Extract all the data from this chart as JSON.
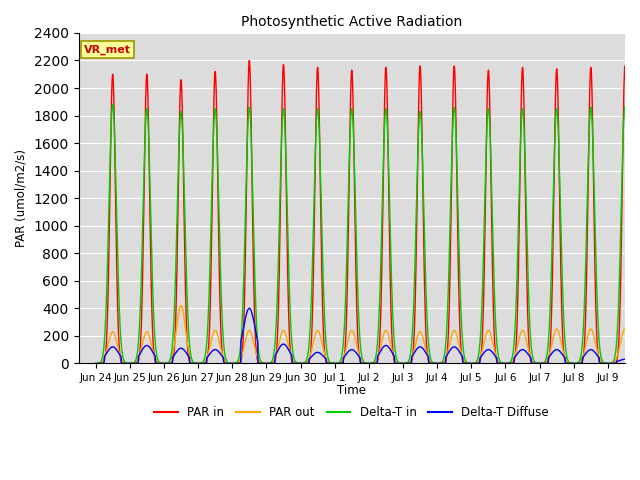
{
  "title": "Photosynthetic Active Radiation",
  "ylabel": "PAR (umol/m2/s)",
  "xlabel": "Time",
  "ylim": [
    0,
    2400
  ],
  "yticks": [
    0,
    200,
    400,
    600,
    800,
    1000,
    1200,
    1400,
    1600,
    1800,
    2000,
    2200,
    2400
  ],
  "annotation_text": "VR_met",
  "annotation_color": "#cc0000",
  "annotation_box_color": "#ffff99",
  "annotation_box_edge": "#999900",
  "background_color": "#dcdcdc",
  "colors": {
    "PAR in": "#ff0000",
    "PAR out": "#ffa500",
    "Delta-T in": "#00cc00",
    "Delta-T Diffuse": "#0000ff"
  },
  "tick_labels": [
    "Jun 24",
    "Jun 25",
    "Jun 26",
    "Jun 27",
    "Jun 28",
    "Jun 29",
    "Jun 30",
    "Jul 1",
    "Jul 2",
    "Jul 3",
    "Jul 4",
    "Jul 5",
    "Jul 6",
    "Jul 7",
    "Jul 8",
    "Jul 9"
  ],
  "par_in_peaks": [
    2100,
    2100,
    2060,
    2120,
    2200,
    2170,
    2150,
    2130,
    2150,
    2160,
    2160,
    2130,
    2150,
    2140,
    2150,
    2160
  ],
  "par_out_peaks": [
    230,
    230,
    420,
    240,
    240,
    240,
    240,
    240,
    240,
    230,
    240,
    240,
    240,
    250,
    250,
    250
  ],
  "delta_t_in_peaks": [
    1880,
    1850,
    1830,
    1850,
    1860,
    1850,
    1850,
    1850,
    1850,
    1830,
    1860,
    1850,
    1850,
    1850,
    1860,
    1870
  ],
  "delta_t_diffuse_peaks": [
    120,
    130,
    110,
    100,
    400,
    140,
    80,
    100,
    130,
    120,
    120,
    100,
    100,
    100,
    100,
    30
  ],
  "n_days": 16,
  "pts_per_day": 500
}
